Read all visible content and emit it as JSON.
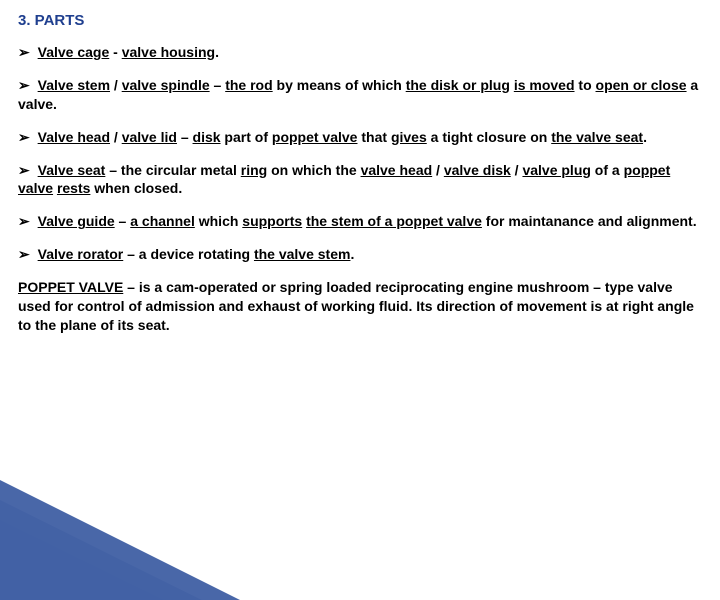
{
  "heading": "3. PARTS",
  "items": [
    {
      "prefix": "➢ ",
      "segments": [
        {
          "t": "Valve cage",
          "u": true
        },
        {
          "t": " - ",
          "u": false
        },
        {
          "t": "valve housing",
          "u": true
        },
        {
          "t": ".",
          "u": false
        }
      ]
    },
    {
      "prefix": "➢ ",
      "segments": [
        {
          "t": "Valve stem",
          "u": true
        },
        {
          "t": " / ",
          "u": false
        },
        {
          "t": "valve spindle",
          "u": true
        },
        {
          "t": " – ",
          "u": false
        },
        {
          "t": "the rod",
          "u": true
        },
        {
          "t": " by means of which ",
          "u": false
        },
        {
          "t": "the disk or plug",
          "u": true
        },
        {
          "t": " ",
          "u": false
        },
        {
          "t": "is moved",
          "u": true
        },
        {
          "t": " to ",
          "u": false
        },
        {
          "t": "open or close",
          "u": true
        },
        {
          "t": " a valve.",
          "u": false
        }
      ]
    },
    {
      "prefix": "➢ ",
      "segments": [
        {
          "t": "Valve head",
          "u": true
        },
        {
          "t": " / ",
          "u": false
        },
        {
          "t": "valve lid",
          "u": true
        },
        {
          "t": " – ",
          "u": false
        },
        {
          "t": "disk",
          "u": true
        },
        {
          "t": " part of ",
          "u": false
        },
        {
          "t": "poppet valve",
          "u": true
        },
        {
          "t": " that ",
          "u": false
        },
        {
          "t": "gives",
          "u": true
        },
        {
          "t": " a tight closure on ",
          "u": false
        },
        {
          "t": "the valve seat",
          "u": true
        },
        {
          "t": ".",
          "u": false
        }
      ]
    },
    {
      "prefix": "➢ ",
      "segments": [
        {
          "t": "Valve seat",
          "u": true
        },
        {
          "t": " – the circular metal ",
          "u": false
        },
        {
          "t": "ring",
          "u": true
        },
        {
          "t": " on which the ",
          "u": false
        },
        {
          "t": "valve head",
          "u": true
        },
        {
          "t": " / ",
          "u": false
        },
        {
          "t": "valve disk",
          "u": true
        },
        {
          "t": " / ",
          "u": false
        },
        {
          "t": "valve plug",
          "u": true
        },
        {
          "t": " of a ",
          "u": false
        },
        {
          "t": "poppet valve",
          "u": true
        },
        {
          "t": " ",
          "u": false
        },
        {
          "t": "rests",
          "u": true
        },
        {
          "t": " when closed.",
          "u": false
        }
      ]
    },
    {
      "prefix": "➢ ",
      "segments": [
        {
          "t": "Valve guide",
          "u": true
        },
        {
          "t": " – ",
          "u": false
        },
        {
          "t": "a channel",
          "u": true
        },
        {
          "t": " which ",
          "u": false
        },
        {
          "t": "supports",
          "u": true
        },
        {
          "t": " ",
          "u": false
        },
        {
          "t": "the stem of a poppet valve",
          "u": true
        },
        {
          "t": " for maintanance and alignment.",
          "u": false
        }
      ]
    },
    {
      "prefix": "➢ ",
      "segments": [
        {
          "t": "Valve rorator",
          "u": true
        },
        {
          "t": " – a device rotating ",
          "u": false
        },
        {
          "t": "the valve stem",
          "u": true
        },
        {
          "t": ".",
          "u": false
        }
      ]
    }
  ],
  "paragraph": {
    "segments": [
      {
        "t": "POPPET VALVE",
        "u": true
      },
      {
        "t": " – is a cam-operated or spring loaded reciprocating engine mushroom – type valve used for control of admission and exhaust of working fluid. Its direction of movement is at right angle to the plane of its seat.",
        "u": false
      }
    ]
  },
  "corner": {
    "colors": [
      "#e9edf5",
      "#c9d3e6",
      "#a9b8d8",
      "#8a9ec9",
      "#6a84ba",
      "#3f5fa3"
    ]
  }
}
